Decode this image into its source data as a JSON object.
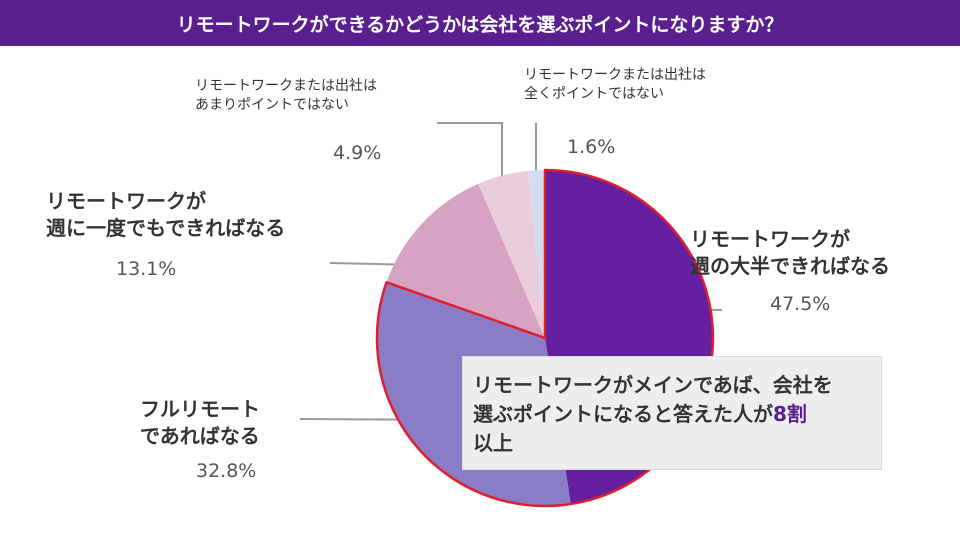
{
  "title": "リモートワークができるかどうかは会社を選ぶポイントになりますか？",
  "callout": {
    "line1": "リモートワークがメインであば、会社を",
    "line2": "選ぶポイントになると答えた人が",
    "highlight": "8割",
    "line3": "以上"
  },
  "chart_data": {
    "type": "pie",
    "title": "リモートワークができるかどうかは会社を選ぶポイントになりますか？",
    "slices": [
      {
        "label_lines": [
          "リモートワークが",
          "週の大半できればなる"
        ],
        "value": 47.5,
        "pct_text": "47.5%",
        "color": "#6420a0",
        "highlighted": true
      },
      {
        "label_lines": [
          "フルリモート",
          "であればなる"
        ],
        "value": 32.8,
        "pct_text": "32.8%",
        "color": "#8b7cc8",
        "highlighted": true
      },
      {
        "label_lines": [
          "リモートワークが",
          "週に一度でもできればなる"
        ],
        "value": 13.1,
        "pct_text": "13.1%",
        "color": "#d6a3c2",
        "highlighted": false
      },
      {
        "label_lines": [
          "リモートワークまたは出社は",
          "あまりポイントではない"
        ],
        "value": 4.9,
        "pct_text": "4.9%",
        "color": "#e9cddd",
        "highlighted": false
      },
      {
        "label_lines": [
          "リモートワークまたは出社は",
          "全くポイントではない"
        ],
        "value": 1.6,
        "pct_text": "1.6%",
        "color": "#d5dcef",
        "highlighted": false
      }
    ],
    "highlight_color": "#e01e2e"
  }
}
